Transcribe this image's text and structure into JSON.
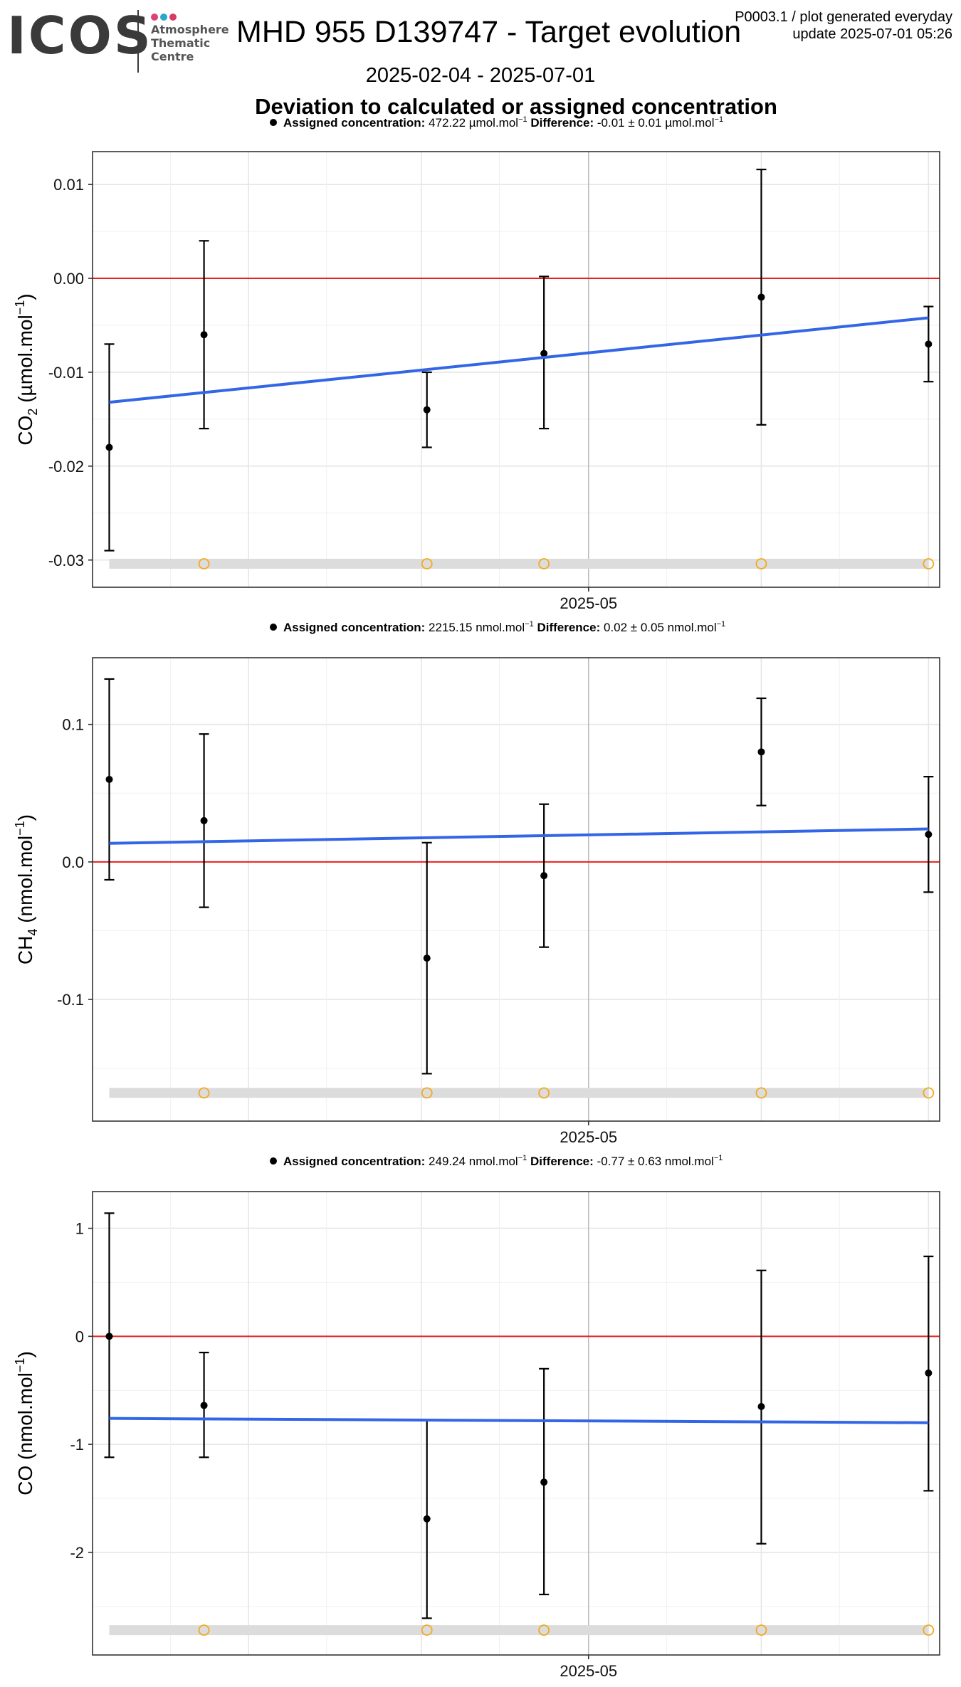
{
  "header": {
    "logo_text": "ICOS",
    "logo_subtitle": [
      "Atmosphere",
      "Thematic",
      "Centre"
    ],
    "logo_dot_colors": [
      "#e0407a",
      "#2aa6c9",
      "#d63a6a"
    ],
    "title": "MHD 955 D139747 - Target evolution",
    "meta_line1": "P0003.1 / plot generated everyday",
    "meta_line2": "update  2025-07-01 05:26",
    "date_range": "2025-02-04 - 2025-07-01",
    "subtitle": "Deviation to calculated or assigned concentration"
  },
  "colors": {
    "trend": "#3366e6",
    "zero_line": "#e8201f",
    "flag_marker": "#f4a81d",
    "flag_band": "#dcdcdc",
    "points": "#000000",
    "grid": "#e6e6e6"
  },
  "chart_data": [
    {
      "type": "scatter",
      "gas": "CO2",
      "ylabel": "CO2 (µmol.mol-1)",
      "ylabel_main": "CO",
      "ylabel_sub": "2",
      "ylabel_rest": " (µmol.mol",
      "ylabel_sup": "−1",
      "ylabel_close": ")",
      "legend": {
        "label_bold": "Assigned concentration:",
        "assigned_value": "472.22 µmol.mol",
        "assigned_sup": "−1",
        "diff_label_bold": "Difference:",
        "diff_value": "-0.01 ± 0.01 µmol.mol",
        "diff_sup": "−1"
      },
      "xlim": [
        "2025-02-01",
        "2025-07-03"
      ],
      "xtick": "2025-05-01",
      "xtick_label": "2025-05",
      "ylim": [
        -0.0329,
        0.0135
      ],
      "yticks": [
        0.01,
        0.0,
        -0.01,
        -0.02,
        -0.03
      ],
      "ytick_labels": [
        "0.01",
        "0.00",
        "-0.01",
        "-0.02",
        "-0.03"
      ],
      "minor_grid_y": [
        0.005,
        -0.005,
        -0.015,
        -0.025
      ],
      "minor_grid_x": [
        "2025-02-15",
        "2025-03-15",
        "2025-04-15",
        "2025-05-15",
        "2025-06-15"
      ],
      "major_grid_x": [
        "2025-03-01",
        "2025-04-01",
        "2025-06-01",
        "2025-07-01"
      ],
      "points": [
        {
          "date": "2025-02-04",
          "y": -0.018,
          "lo": -0.029,
          "hi": -0.007
        },
        {
          "date": "2025-02-21",
          "y": -0.006,
          "lo": -0.016,
          "hi": 0.004
        },
        {
          "date": "2025-04-02",
          "y": -0.014,
          "lo": -0.018,
          "hi": -0.01
        },
        {
          "date": "2025-04-23",
          "y": -0.008,
          "lo": -0.016,
          "hi": 0.0002
        },
        {
          "date": "2025-06-01",
          "y": -0.002,
          "lo": -0.0156,
          "hi": 0.0116
        },
        {
          "date": "2025-07-01",
          "y": -0.007,
          "lo": -0.011,
          "hi": -0.003
        }
      ],
      "trend": {
        "start": [
          "2025-02-04",
          -0.0132
        ],
        "end": [
          "2025-07-01",
          -0.0042
        ]
      },
      "flags": [
        "2025-02-21",
        "2025-04-02",
        "2025-04-23",
        "2025-06-01",
        "2025-07-01"
      ],
      "flag_y": -0.0304,
      "band_y": -0.0304,
      "band_x": [
        "2025-02-04",
        "2025-07-01"
      ]
    },
    {
      "type": "scatter",
      "gas": "CH4",
      "ylabel": "CH4 (nmol.mol-1)",
      "ylabel_main": "CH",
      "ylabel_sub": "4",
      "ylabel_rest": " (nmol.mol",
      "ylabel_sup": "−1",
      "ylabel_close": ")",
      "legend": {
        "label_bold": "Assigned concentration:",
        "assigned_value": "2215.15 nmol.mol",
        "assigned_sup": "−1",
        "diff_label_bold": "Difference:",
        "diff_value": "0.02 ± 0.05 nmol.mol",
        "diff_sup": "−1"
      },
      "xlim": [
        "2025-02-01",
        "2025-07-03"
      ],
      "xtick": "2025-05-01",
      "xtick_label": "2025-05",
      "ylim": [
        -0.1885,
        0.1485
      ],
      "yticks": [
        0.1,
        0.0,
        -0.1
      ],
      "ytick_labels": [
        "0.1",
        "0.0",
        "-0.1"
      ],
      "minor_grid_y": [
        0.05,
        -0.05,
        -0.15
      ],
      "minor_grid_x": [
        "2025-02-15",
        "2025-03-15",
        "2025-04-15",
        "2025-05-15",
        "2025-06-15"
      ],
      "major_grid_x": [
        "2025-03-01",
        "2025-04-01",
        "2025-06-01",
        "2025-07-01"
      ],
      "points": [
        {
          "date": "2025-02-04",
          "y": 0.06,
          "lo": -0.013,
          "hi": 0.133
        },
        {
          "date": "2025-02-21",
          "y": 0.03,
          "lo": -0.033,
          "hi": 0.093
        },
        {
          "date": "2025-04-02",
          "y": -0.07,
          "lo": -0.154,
          "hi": 0.014
        },
        {
          "date": "2025-04-23",
          "y": -0.01,
          "lo": -0.062,
          "hi": 0.042
        },
        {
          "date": "2025-06-01",
          "y": 0.08,
          "lo": 0.041,
          "hi": 0.119
        },
        {
          "date": "2025-07-01",
          "y": 0.02,
          "lo": -0.022,
          "hi": 0.062
        }
      ],
      "trend": {
        "start": [
          "2025-02-04",
          0.0135
        ],
        "end": [
          "2025-07-01",
          0.024
        ]
      },
      "flags": [
        "2025-02-21",
        "2025-04-02",
        "2025-04-23",
        "2025-06-01",
        "2025-07-01"
      ],
      "flag_y": -0.168,
      "band_y": -0.168,
      "band_x": [
        "2025-02-04",
        "2025-07-01"
      ]
    },
    {
      "type": "scatter",
      "gas": "CO",
      "ylabel": "CO (nmol.mol-1)",
      "ylabel_main": "CO",
      "ylabel_sub": "",
      "ylabel_rest": " (nmol.mol",
      "ylabel_sup": "−1",
      "ylabel_close": ")",
      "legend": {
        "label_bold": "Assigned concentration:",
        "assigned_value": "249.24 nmol.mol",
        "assigned_sup": "−1",
        "diff_label_bold": "Difference:",
        "diff_value": "-0.77 ± 0.63 nmol.mol",
        "diff_sup": "−1"
      },
      "xlim": [
        "2025-02-01",
        "2025-07-03"
      ],
      "xtick": "2025-05-01",
      "xtick_label": "2025-05",
      "ylim": [
        -2.95,
        1.34
      ],
      "yticks": [
        1,
        0,
        -1,
        -2
      ],
      "ytick_labels": [
        "1",
        "0",
        "-1",
        "-2"
      ],
      "minor_grid_y": [
        0.5,
        -0.5,
        -1.5,
        -2.5
      ],
      "minor_grid_x": [
        "2025-02-15",
        "2025-03-15",
        "2025-04-15",
        "2025-05-15",
        "2025-06-15"
      ],
      "major_grid_x": [
        "2025-03-01",
        "2025-04-01",
        "2025-06-01",
        "2025-07-01"
      ],
      "points": [
        {
          "date": "2025-02-04",
          "y": 0.0,
          "lo": -1.12,
          "hi": 1.14
        },
        {
          "date": "2025-02-21",
          "y": -0.64,
          "lo": -1.12,
          "hi": -0.15
        },
        {
          "date": "2025-04-02",
          "y": -1.69,
          "lo": -2.61,
          "hi": -0.78
        },
        {
          "date": "2025-04-23",
          "y": -1.35,
          "lo": -2.39,
          "hi": -0.3
        },
        {
          "date": "2025-06-01",
          "y": -0.65,
          "lo": -1.92,
          "hi": 0.61
        },
        {
          "date": "2025-07-01",
          "y": -0.34,
          "lo": -1.43,
          "hi": 0.74
        }
      ],
      "trend": {
        "start": [
          "2025-02-04",
          -0.76
        ],
        "end": [
          "2025-07-01",
          -0.8
        ]
      },
      "flags": [
        "2025-02-21",
        "2025-04-02",
        "2025-04-23",
        "2025-06-01",
        "2025-07-01"
      ],
      "flag_y": -2.72,
      "band_y": -2.72,
      "band_x": [
        "2025-02-04",
        "2025-07-01"
      ]
    }
  ]
}
